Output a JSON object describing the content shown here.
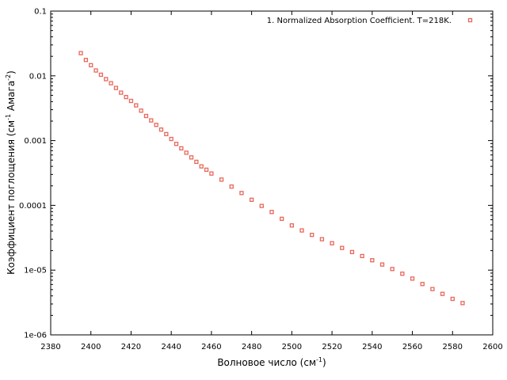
{
  "chart_data": {
    "type": "scatter",
    "title": "",
    "xlabel": "Волновое число (см",
    "xlabel_sup": "-1",
    "xlabel_end": ")",
    "ylabel": "Коэффициент поглощения (см",
    "ylabel_sup1": "-1",
    "ylabel_mid": " Амага",
    "ylabel_sup2": "-2",
    "ylabel_end": ")",
    "xlim": [
      2380,
      2600
    ],
    "ylim": [
      1e-06,
      0.1
    ],
    "yscale": "log",
    "xticks": [
      2380,
      2400,
      2420,
      2440,
      2460,
      2480,
      2500,
      2520,
      2540,
      2560,
      2580,
      2600
    ],
    "yticks": [
      1e-06,
      1e-05,
      0.0001,
      0.001,
      0.01,
      0.1
    ],
    "ytick_labels": [
      "1e-06",
      "1e-05",
      "0.0001",
      "0.001",
      "0.01",
      "0.1"
    ],
    "grid": false,
    "legend_position": "top-right",
    "marker_color": "#e8675a",
    "series": [
      {
        "name": "1. Normalized Absorption Coefficient. T=218K.",
        "x": [
          2395,
          2397.5,
          2400,
          2402.5,
          2405,
          2407.5,
          2410,
          2412.5,
          2415,
          2417.5,
          2420,
          2422.5,
          2425,
          2427.5,
          2430,
          2432.5,
          2435,
          2437.5,
          2440,
          2442.5,
          2445,
          2447.5,
          2450,
          2452.5,
          2455,
          2457.5,
          2460,
          2465,
          2470,
          2475,
          2480,
          2485,
          2490,
          2495,
          2500,
          2505,
          2510,
          2515,
          2520,
          2525,
          2530,
          2535,
          2540,
          2545,
          2550,
          2555,
          2560,
          2565,
          2570,
          2575,
          2580,
          2585
        ],
        "y": [
          0.0224,
          0.0176,
          0.0146,
          0.0121,
          0.0104,
          0.0089,
          0.0077,
          0.0065,
          0.0055,
          0.0047,
          0.0041,
          0.0035,
          0.0029,
          0.0024,
          0.00205,
          0.00175,
          0.00148,
          0.00126,
          0.00106,
          0.00089,
          0.00076,
          0.00065,
          0.00055,
          0.00047,
          0.0004,
          0.000355,
          0.00031,
          0.00025,
          0.000195,
          0.000155,
          0.000122,
          9.8e-05,
          7.9e-05,
          6.2e-05,
          4.9e-05,
          4.1e-05,
          3.5e-05,
          3e-05,
          2.6e-05,
          2.2e-05,
          1.9e-05,
          1.65e-05,
          1.42e-05,
          1.22e-05,
          1.04e-05,
          8.8e-06,
          7.4e-06,
          6.1e-06,
          5.1e-06,
          4.3e-06,
          3.6e-06,
          3.1e-06
        ]
      }
    ]
  }
}
